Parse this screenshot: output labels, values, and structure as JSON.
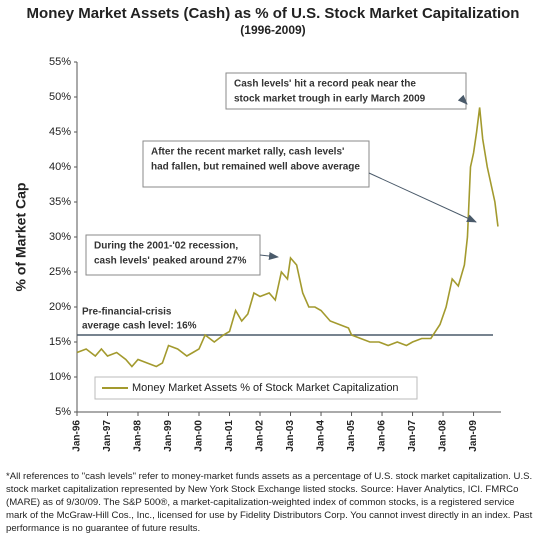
{
  "chart_data": {
    "type": "line",
    "title": "Money Market Assets (Cash) as % of U.S. Stock Market Capitalization",
    "subtitle": "(1996-2009)",
    "y_label": "% of Market Cap",
    "xlim": [
      1996,
      2009.9
    ],
    "xticks": [
      {
        "value": 1996,
        "label": "Jan-96"
      },
      {
        "value": 1997,
        "label": "Jan-97"
      },
      {
        "value": 1998,
        "label": "Jan-98"
      },
      {
        "value": 1999,
        "label": "Jan-99"
      },
      {
        "value": 2000,
        "label": "Jan-00"
      },
      {
        "value": 2001,
        "label": "Jan-01"
      },
      {
        "value": 2002,
        "label": "Jan-02"
      },
      {
        "value": 2003,
        "label": "Jan-03"
      },
      {
        "value": 2004,
        "label": "Jan-04"
      },
      {
        "value": 2005,
        "label": "Jan-05"
      },
      {
        "value": 2006,
        "label": "Jan-06"
      },
      {
        "value": 2007,
        "label": "Jan-07"
      },
      {
        "value": 2008,
        "label": "Jan-08"
      },
      {
        "value": 2009,
        "label": "Jan-09"
      }
    ],
    "ylim": [
      5,
      55
    ],
    "yticks": [
      {
        "value": 5,
        "label": "5%"
      },
      {
        "value": 10,
        "label": "10%"
      },
      {
        "value": 15,
        "label": "15%"
      },
      {
        "value": 20,
        "label": "20%"
      },
      {
        "value": 25,
        "label": "25%"
      },
      {
        "value": 30,
        "label": "30%"
      },
      {
        "value": 35,
        "label": "35%"
      },
      {
        "value": 40,
        "label": "40%"
      },
      {
        "value": 45,
        "label": "45%"
      },
      {
        "value": 50,
        "label": "50%"
      },
      {
        "value": 55,
        "label": "55%"
      }
    ],
    "series": [
      {
        "name": "Money Market Assets % of Stock Market Capitalization",
        "color": "#a39a2e",
        "x": [
          1996.0,
          1996.3,
          1996.6,
          1996.8,
          1997.0,
          1997.3,
          1997.6,
          1997.8,
          1998.0,
          1998.3,
          1998.6,
          1998.8,
          1999.0,
          1999.3,
          1999.6,
          1999.8,
          2000.0,
          2000.2,
          2000.5,
          2000.8,
          2001.0,
          2001.2,
          2001.4,
          2001.6,
          2001.8,
          2002.0,
          2002.3,
          2002.5,
          2002.7,
          2002.9,
          2003.0,
          2003.2,
          2003.4,
          2003.6,
          2003.8,
          2004.0,
          2004.3,
          2004.6,
          2004.9,
          2005.0,
          2005.3,
          2005.6,
          2005.9,
          2006.2,
          2006.5,
          2006.8,
          2007.0,
          2007.3,
          2007.6,
          2007.9,
          2008.1,
          2008.3,
          2008.5,
          2008.7,
          2008.8,
          2008.9,
          2009.0,
          2009.1,
          2009.2,
          2009.3,
          2009.45,
          2009.6,
          2009.7,
          2009.8
        ],
        "values": [
          13.5,
          14,
          13,
          14,
          13,
          13.5,
          12.5,
          11.5,
          12.5,
          12,
          11.5,
          12,
          14.5,
          14,
          13,
          13.5,
          14,
          16,
          15,
          16,
          16.5,
          19.5,
          18,
          19,
          22,
          21.5,
          22,
          21,
          25,
          24,
          27,
          26,
          22,
          20,
          20,
          19.5,
          18,
          17.5,
          17,
          16,
          15.5,
          15,
          15,
          14.5,
          15,
          14.5,
          15,
          15.5,
          15.5,
          17.5,
          20,
          24,
          23,
          26,
          30,
          40,
          42,
          45,
          48.5,
          44,
          40,
          37,
          35,
          31.5
        ]
      }
    ],
    "reference_line": {
      "value": 16,
      "color": "#4a5a6a",
      "label": [
        "Pre-financial-crisis",
        "average cash level: 16%"
      ]
    },
    "annotations": [
      {
        "lines": [
          "Cash levels' hit a record peak near the",
          "stock market trough in early March 2009"
        ]
      },
      {
        "lines": [
          "After the recent market rally, cash levels'",
          "had fallen, but remained well above average"
        ]
      },
      {
        "lines": [
          "During the 2001-'02 recession,",
          "cash levels' peaked around 27%"
        ]
      }
    ]
  },
  "footnote": "*All references to \"cash levels\" refer to money-market funds assets as a percentage of U.S. stock market capitalization. U.S. stock market capitalization represented by New York Stock Exchange listed stocks. Source: Haver Analytics, ICI. FMRCo (MARE) as of 9/30/09. The S&P 500®, a market-capitalization-weighted index of common stocks, is a registered service mark of the McGraw-Hill Cos., Inc., licensed for use by Fidelity Distributors Corp. You cannot invest directly in an index. Past performance is no guarantee of future results."
}
